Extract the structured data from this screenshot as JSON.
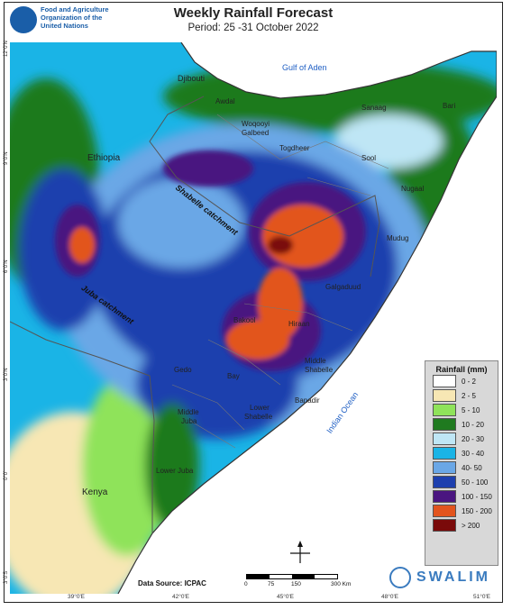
{
  "header": {
    "fao_lines": [
      "Food and Agriculture",
      "Organization of the",
      "United Nations"
    ],
    "title": "Weekly Rainfall Forecast",
    "period": "Period: 25 -31 October 2022"
  },
  "places": {
    "djibouti": "Djibouti",
    "gulf": "Gulf of Aden",
    "awdal": "Awdal",
    "woqooyi1": "Woqooyi",
    "woqooyi2": "Galbeed",
    "togdheer": "Togdheer",
    "sanaag": "Sanaag",
    "bari": "Bari",
    "sool": "Sool",
    "nugaal": "Nugaal",
    "ethiopia": "Ethiopia",
    "shabelle_catch": "Shabelle catchment",
    "juba_catch": "Juba catchment",
    "mudug": "Mudug",
    "galgaduud": "Galgaduud",
    "bakool": "Bakool",
    "hiraan": "Hiraan",
    "gedo": "Gedo",
    "bay": "Bay",
    "middle_shabelle1": "Middle",
    "middle_shabelle2": "Shabelle",
    "banadir": "Banadir",
    "lower_shabelle1": "Lower",
    "lower_shabelle2": "Shabelle",
    "middle_juba1": "Middle",
    "middle_juba2": "Juba",
    "indian_ocean": "Indian Ocean",
    "lower_juba": "Lower Juba",
    "kenya": "Kenya"
  },
  "lat_labels": [
    "12°0'N",
    "9°0'N",
    "6°0'N",
    "3°0'N",
    "0°0'",
    "3°0'S"
  ],
  "lon_labels": [
    "39°0'E",
    "42°0'E",
    "45°0'E",
    "48°0'E",
    "51°0'E"
  ],
  "legend": {
    "title": "Rainfall (mm)",
    "items": [
      {
        "label": "0 - 2",
        "color": "#ffffff"
      },
      {
        "label": "2 - 5",
        "color": "#f7e7b4"
      },
      {
        "label": "5 - 10",
        "color": "#8fe35a"
      },
      {
        "label": "10 - 20",
        "color": "#1f7a1f"
      },
      {
        "label": "20 - 30",
        "color": "#bfe6f5"
      },
      {
        "label": "30 - 40",
        "color": "#1ab4e6"
      },
      {
        "label": "40- 50",
        "color": "#6aa7e6"
      },
      {
        "label": "50 - 100",
        "color": "#1d3fae"
      },
      {
        "label": "100 - 150",
        "color": "#4a1580"
      },
      {
        "label": "150 - 200",
        "color": "#e2541d"
      },
      {
        "label": ">   200",
        "color": "#7a0a0a"
      }
    ]
  },
  "footer": {
    "source": "Data Source: ICPAC",
    "scale_ticks": [
      "0",
      "75",
      "150",
      "300 Km"
    ],
    "swalim": "SWALIM"
  }
}
